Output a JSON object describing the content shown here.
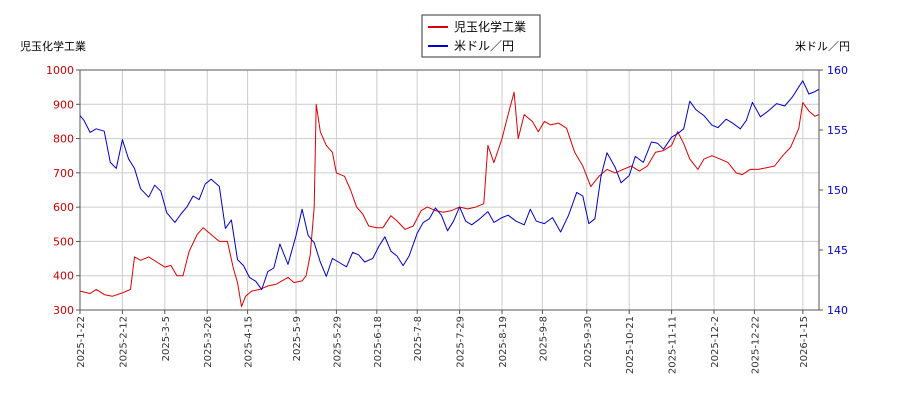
{
  "chart_data": {
    "type": "line",
    "left_axis_title": "児玉化学工業",
    "right_axis_title": "米ドル／円",
    "legend": {
      "position": "top-center",
      "entries": [
        "児玉化学工業",
        "米ドル／円"
      ]
    },
    "grid": true,
    "ylim_left": [
      300,
      1000
    ],
    "ylim_right": [
      140,
      160
    ],
    "yticks_left": [
      "300",
      "400",
      "500",
      "600",
      "700",
      "800",
      "900",
      "1000"
    ],
    "yticks_right": [
      "140",
      "145",
      "150",
      "155",
      "160"
    ],
    "x_tick_labels": [
      "2025-1-22",
      "2025-2-12",
      "2025-3-5",
      "2025-3-26",
      "2025-4-15",
      "2025-5-9",
      "2025-5-29",
      "2025-6-18",
      "2025-7-8",
      "2025-7-29",
      "2025-8-19",
      "2025-9-8",
      "2025-9-30",
      "2025-10-21",
      "2025-11-11",
      "2025-12-2",
      "2025-12-22",
      "2026-1-15"
    ],
    "x_start": "2025-1-22",
    "x_end": "2026-1-23",
    "colors": {
      "stock": "#dd0000",
      "fx": "#0000cc"
    },
    "series": [
      {
        "name": "児玉化学工業",
        "axis": "left",
        "points": [
          [
            "2025-1-22",
            355
          ],
          [
            "2025-1-27",
            348
          ],
          [
            "2025-1-30",
            360
          ],
          [
            "2025-2-3",
            345
          ],
          [
            "2025-2-7",
            340
          ],
          [
            "2025-2-12",
            350
          ],
          [
            "2025-2-16",
            360
          ],
          [
            "2025-2-18",
            455
          ],
          [
            "2025-2-21",
            445
          ],
          [
            "2025-2-25",
            455
          ],
          [
            "2025-3-1",
            440
          ],
          [
            "2025-3-5",
            425
          ],
          [
            "2025-3-8",
            430
          ],
          [
            "2025-3-11",
            400
          ],
          [
            "2025-3-14",
            400
          ],
          [
            "2025-3-17",
            470
          ],
          [
            "2025-3-21",
            520
          ],
          [
            "2025-3-24",
            540
          ],
          [
            "2025-3-28",
            520
          ],
          [
            "2025-4-1",
            500
          ],
          [
            "2025-4-5",
            500
          ],
          [
            "2025-4-8",
            420
          ],
          [
            "2025-4-10",
            380
          ],
          [
            "2025-4-12",
            310
          ],
          [
            "2025-4-14",
            340
          ],
          [
            "2025-4-17",
            355
          ],
          [
            "2025-4-21",
            360
          ],
          [
            "2025-4-25",
            370
          ],
          [
            "2025-4-29",
            375
          ],
          [
            "2025-5-2",
            385
          ],
          [
            "2025-5-5",
            395
          ],
          [
            "2025-5-8",
            380
          ],
          [
            "2025-5-12",
            385
          ],
          [
            "2025-5-14",
            400
          ],
          [
            "2025-5-16",
            460
          ],
          [
            "2025-5-18",
            600
          ],
          [
            "2025-5-19",
            900
          ],
          [
            "2025-5-21",
            820
          ],
          [
            "2025-5-24",
            780
          ],
          [
            "2025-5-27",
            760
          ],
          [
            "2025-5-29",
            700
          ],
          [
            "2025-6-2",
            690
          ],
          [
            "2025-6-5",
            650
          ],
          [
            "2025-6-8",
            600
          ],
          [
            "2025-6-11",
            580
          ],
          [
            "2025-6-14",
            545
          ],
          [
            "2025-6-18",
            540
          ],
          [
            "2025-6-21",
            540
          ],
          [
            "2025-6-25",
            575
          ],
          [
            "2025-6-28",
            560
          ],
          [
            "2025-7-2",
            535
          ],
          [
            "2025-7-6",
            545
          ],
          [
            "2025-7-10",
            590
          ],
          [
            "2025-7-13",
            600
          ],
          [
            "2025-7-17",
            590
          ],
          [
            "2025-7-21",
            585
          ],
          [
            "2025-7-25",
            590
          ],
          [
            "2025-7-29",
            600
          ],
          [
            "2025-8-2",
            595
          ],
          [
            "2025-8-6",
            600
          ],
          [
            "2025-8-10",
            610
          ],
          [
            "2025-8-12",
            780
          ],
          [
            "2025-8-15",
            730
          ],
          [
            "2025-8-19",
            800
          ],
          [
            "2025-8-22",
            870
          ],
          [
            "2025-8-25",
            935
          ],
          [
            "2025-8-27",
            800
          ],
          [
            "2025-8-30",
            870
          ],
          [
            "2025-9-3",
            850
          ],
          [
            "2025-9-6",
            820
          ],
          [
            "2025-9-9",
            850
          ],
          [
            "2025-9-12",
            840
          ],
          [
            "2025-9-16",
            845
          ],
          [
            "2025-9-20",
            830
          ],
          [
            "2025-9-24",
            760
          ],
          [
            "2025-9-28",
            720
          ],
          [
            "2025-10-2",
            660
          ],
          [
            "2025-10-6",
            690
          ],
          [
            "2025-10-10",
            710
          ],
          [
            "2025-10-14",
            700
          ],
          [
            "2025-10-18",
            710
          ],
          [
            "2025-10-22",
            720
          ],
          [
            "2025-10-26",
            705
          ],
          [
            "2025-10-30",
            720
          ],
          [
            "2025-11-3",
            760
          ],
          [
            "2025-11-7",
            765
          ],
          [
            "2025-11-11",
            780
          ],
          [
            "2025-11-14",
            820
          ],
          [
            "2025-11-17",
            785
          ],
          [
            "2025-11-20",
            740
          ],
          [
            "2025-11-24",
            710
          ],
          [
            "2025-11-27",
            740
          ],
          [
            "2025-12-1",
            750
          ],
          [
            "2025-12-5",
            740
          ],
          [
            "2025-12-9",
            730
          ],
          [
            "2025-12-13",
            700
          ],
          [
            "2025-12-16",
            695
          ],
          [
            "2025-12-20",
            710
          ],
          [
            "2025-12-24",
            710
          ],
          [
            "2025-12-28",
            715
          ],
          [
            "2026-1-1",
            720
          ],
          [
            "2026-1-5",
            750
          ],
          [
            "2026-1-9",
            775
          ],
          [
            "2026-1-13",
            830
          ],
          [
            "2026-1-15",
            905
          ],
          [
            "2026-1-18",
            880
          ],
          [
            "2026-1-21",
            865
          ],
          [
            "2026-1-23",
            870
          ]
        ]
      },
      {
        "name": "米ドル／円",
        "axis": "right",
        "points": [
          [
            "2025-1-22",
            156.2
          ],
          [
            "2025-1-24",
            155.8
          ],
          [
            "2025-1-27",
            154.8
          ],
          [
            "2025-1-30",
            155.1
          ],
          [
            "2025-2-3",
            154.9
          ],
          [
            "2025-2-6",
            152.3
          ],
          [
            "2025-2-9",
            151.8
          ],
          [
            "2025-2-12",
            154.2
          ],
          [
            "2025-2-15",
            152.6
          ],
          [
            "2025-2-18",
            151.8
          ],
          [
            "2025-2-21",
            150.1
          ],
          [
            "2025-2-25",
            149.4
          ],
          [
            "2025-2-28",
            150.4
          ],
          [
            "2025-3-3",
            149.9
          ],
          [
            "2025-3-6",
            148.1
          ],
          [
            "2025-3-10",
            147.3
          ],
          [
            "2025-3-13",
            148.0
          ],
          [
            "2025-3-16",
            148.6
          ],
          [
            "2025-3-19",
            149.5
          ],
          [
            "2025-3-22",
            149.2
          ],
          [
            "2025-3-25",
            150.5
          ],
          [
            "2025-3-28",
            150.9
          ],
          [
            "2025-4-1",
            150.3
          ],
          [
            "2025-4-4",
            146.8
          ],
          [
            "2025-4-7",
            147.5
          ],
          [
            "2025-4-10",
            144.2
          ],
          [
            "2025-4-13",
            143.7
          ],
          [
            "2025-4-16",
            142.7
          ],
          [
            "2025-4-19",
            142.4
          ],
          [
            "2025-4-22",
            141.7
          ],
          [
            "2025-4-25",
            143.2
          ],
          [
            "2025-4-28",
            143.5
          ],
          [
            "2025-5-1",
            145.5
          ],
          [
            "2025-5-5",
            143.8
          ],
          [
            "2025-5-9",
            146.2
          ],
          [
            "2025-5-12",
            148.4
          ],
          [
            "2025-5-15",
            146.2
          ],
          [
            "2025-5-18",
            145.6
          ],
          [
            "2025-5-21",
            144.0
          ],
          [
            "2025-5-24",
            142.8
          ],
          [
            "2025-5-27",
            144.3
          ],
          [
            "2025-5-30",
            144.0
          ],
          [
            "2025-6-3",
            143.6
          ],
          [
            "2025-6-6",
            144.8
          ],
          [
            "2025-6-9",
            144.6
          ],
          [
            "2025-6-12",
            144.0
          ],
          [
            "2025-6-16",
            144.3
          ],
          [
            "2025-6-19",
            145.3
          ],
          [
            "2025-6-22",
            146.1
          ],
          [
            "2025-6-25",
            144.9
          ],
          [
            "2025-6-28",
            144.5
          ],
          [
            "2025-7-1",
            143.7
          ],
          [
            "2025-7-4",
            144.5
          ],
          [
            "2025-7-8",
            146.4
          ],
          [
            "2025-7-11",
            147.3
          ],
          [
            "2025-7-14",
            147.6
          ],
          [
            "2025-7-17",
            148.5
          ],
          [
            "2025-7-20",
            147.9
          ],
          [
            "2025-7-23",
            146.6
          ],
          [
            "2025-7-26",
            147.4
          ],
          [
            "2025-7-29",
            148.6
          ],
          [
            "2025-8-1",
            147.4
          ],
          [
            "2025-8-4",
            147.1
          ],
          [
            "2025-8-8",
            147.6
          ],
          [
            "2025-8-12",
            148.2
          ],
          [
            "2025-8-15",
            147.3
          ],
          [
            "2025-8-19",
            147.7
          ],
          [
            "2025-8-22",
            147.9
          ],
          [
            "2025-8-26",
            147.4
          ],
          [
            "2025-8-30",
            147.1
          ],
          [
            "2025-9-2",
            148.4
          ],
          [
            "2025-9-5",
            147.4
          ],
          [
            "2025-9-9",
            147.2
          ],
          [
            "2025-9-13",
            147.7
          ],
          [
            "2025-9-17",
            146.5
          ],
          [
            "2025-9-21",
            147.9
          ],
          [
            "2025-9-25",
            149.8
          ],
          [
            "2025-9-28",
            149.5
          ],
          [
            "2025-10-1",
            147.2
          ],
          [
            "2025-10-4",
            147.6
          ],
          [
            "2025-10-7",
            151.1
          ],
          [
            "2025-10-10",
            153.1
          ],
          [
            "2025-10-14",
            151.9
          ],
          [
            "2025-10-17",
            150.6
          ],
          [
            "2025-10-21",
            151.2
          ],
          [
            "2025-10-24",
            152.8
          ],
          [
            "2025-10-28",
            152.3
          ],
          [
            "2025-11-1",
            154.0
          ],
          [
            "2025-11-4",
            153.9
          ],
          [
            "2025-11-7",
            153.4
          ],
          [
            "2025-11-11",
            154.4
          ],
          [
            "2025-11-14",
            154.7
          ],
          [
            "2025-11-17",
            155.1
          ],
          [
            "2025-11-20",
            157.4
          ],
          [
            "2025-11-23",
            156.7
          ],
          [
            "2025-11-27",
            156.2
          ],
          [
            "2025-12-1",
            155.4
          ],
          [
            "2025-12-4",
            155.2
          ],
          [
            "2025-12-8",
            155.9
          ],
          [
            "2025-12-11",
            155.6
          ],
          [
            "2025-12-15",
            155.1
          ],
          [
            "2025-12-18",
            155.8
          ],
          [
            "2025-12-21",
            157.3
          ],
          [
            "2025-12-25",
            156.1
          ],
          [
            "2025-12-29",
            156.6
          ],
          [
            "2026-1-2",
            157.2
          ],
          [
            "2026-1-6",
            157.0
          ],
          [
            "2026-1-10",
            157.8
          ],
          [
            "2026-1-13",
            158.6
          ],
          [
            "2026-1-15",
            159.1
          ],
          [
            "2026-1-18",
            158.0
          ],
          [
            "2026-1-21",
            158.2
          ],
          [
            "2026-1-23",
            158.4
          ]
        ]
      }
    ]
  }
}
